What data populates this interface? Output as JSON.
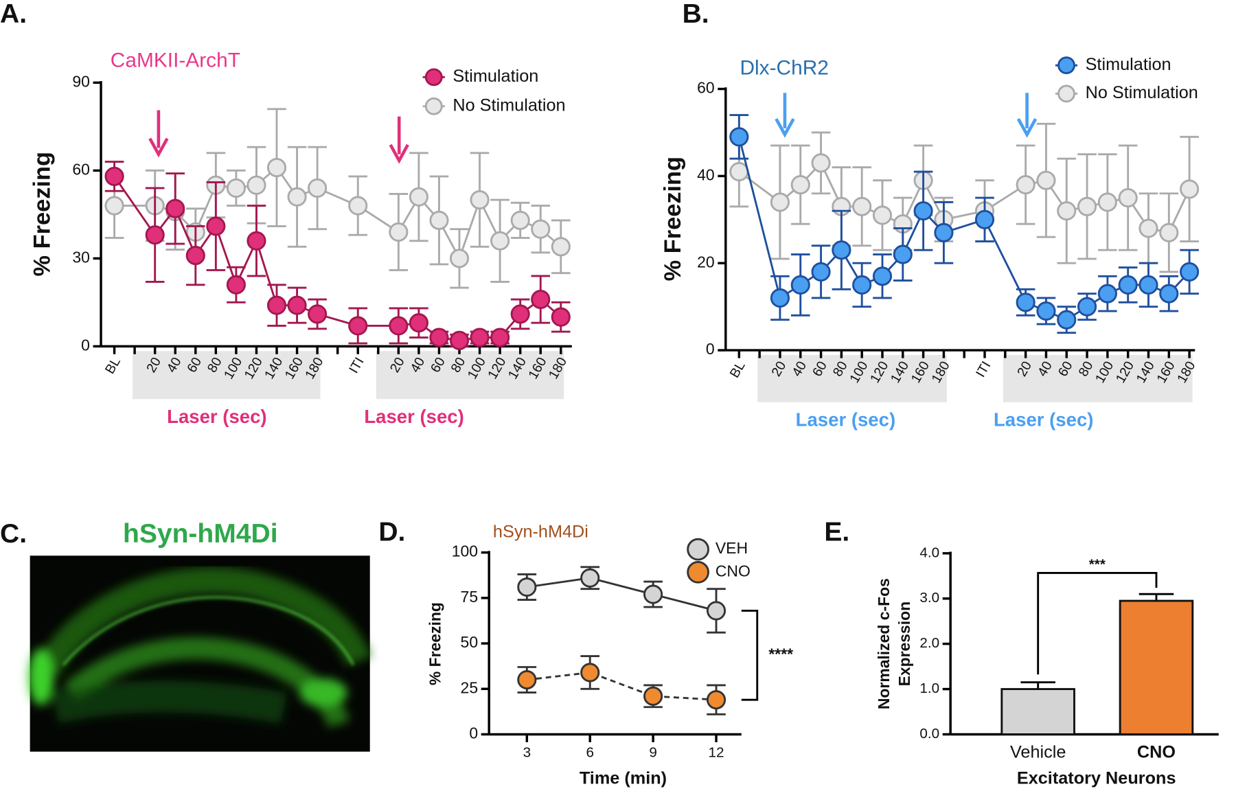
{
  "image_panel": {
    "label": "C.",
    "title": "hSyn-hM4Di"
  },
  "chart_data": [
    {
      "type": "line",
      "panel_label": "A.",
      "title": "CaMKII-ArchT",
      "y_label": "% Freezing",
      "x_annotations": [
        "Laser (sec)",
        "Laser (sec)"
      ],
      "categories": [
        "BL",
        "20",
        "40",
        "60",
        "80",
        "100",
        "120",
        "140",
        "160",
        "180",
        "ITI",
        "20",
        "40",
        "60",
        "80",
        "100",
        "120",
        "140",
        "160",
        "180"
      ],
      "ylim": [
        0,
        90
      ],
      "yticks": [
        0,
        30,
        60,
        90
      ],
      "series": [
        {
          "name": "Stimulation",
          "color": "#e0307a",
          "line_color": "#a3174f",
          "values": [
            58,
            38,
            47,
            31,
            41,
            21,
            36,
            14,
            14,
            11,
            7,
            7,
            8,
            3,
            2,
            3,
            3,
            11,
            16,
            10
          ],
          "errors": [
            5,
            16,
            12,
            10,
            15,
            6,
            12,
            7,
            6,
            5,
            6,
            6,
            5,
            2,
            2,
            2,
            2,
            5,
            8,
            5
          ]
        },
        {
          "name": "No Stimulation",
          "color": "#e8e8e8",
          "line_color": "#aaaaaa",
          "values": [
            48,
            48,
            46,
            39,
            55,
            54,
            55,
            61,
            51,
            54,
            48,
            39,
            51,
            43,
            30,
            50,
            36,
            43,
            40,
            34
          ],
          "errors": [
            11,
            12,
            13,
            8,
            11,
            6,
            13,
            20,
            17,
            14,
            10,
            13,
            15,
            15,
            10,
            16,
            14,
            6,
            8,
            9
          ]
        }
      ]
    },
    {
      "type": "line",
      "panel_label": "B.",
      "title": "Dlx-ChR2",
      "y_label": "% Freezing",
      "x_annotations": [
        "Laser (sec)",
        "Laser (sec)"
      ],
      "categories": [
        "BL",
        "20",
        "40",
        "60",
        "80",
        "100",
        "120",
        "140",
        "160",
        "180",
        "ITI",
        "20",
        "40",
        "60",
        "80",
        "100",
        "120",
        "140",
        "160",
        "180"
      ],
      "ylim": [
        0,
        60
      ],
      "yticks": [
        0,
        20,
        40,
        60
      ],
      "series": [
        {
          "name": "Stimulation",
          "color": "#4a9ff0",
          "line_color": "#1f4f9e",
          "values": [
            49,
            12,
            15,
            18,
            23,
            15,
            17,
            22,
            32,
            27,
            30,
            11,
            9,
            7,
            10,
            13,
            15,
            15,
            13,
            18
          ],
          "errors": [
            5,
            5,
            7,
            6,
            9,
            5,
            5,
            6,
            9,
            7,
            5,
            3,
            3,
            3,
            3,
            4,
            4,
            5,
            4,
            5
          ]
        },
        {
          "name": "No Stimulation",
          "color": "#e8e8e8",
          "line_color": "#aaaaaa",
          "values": [
            41,
            34,
            38,
            43,
            33,
            33,
            31,
            29,
            39,
            30,
            32,
            38,
            39,
            32,
            33,
            34,
            35,
            28,
            27,
            37
          ],
          "errors": [
            8,
            13,
            9,
            7,
            9,
            9,
            8,
            6,
            8,
            5,
            7,
            9,
            13,
            12,
            12,
            11,
            12,
            8,
            9,
            12
          ]
        }
      ]
    },
    {
      "type": "line",
      "panel_label": "D.",
      "title": "hSyn-hM4Di",
      "y_label": "% Freezing",
      "x_label": "Time (min)",
      "annotation": "****",
      "x": [
        3,
        6,
        9,
        12
      ],
      "xlim": [
        1.2,
        13.2
      ],
      "xticks": [
        3,
        6,
        9,
        12
      ],
      "ylim": [
        0,
        100
      ],
      "yticks": [
        0,
        25,
        50,
        75,
        100
      ],
      "series": [
        {
          "name": "VEH",
          "color": "#d4d4d4",
          "line_color": "#333333",
          "dashed": false,
          "values": [
            81,
            86,
            77,
            68
          ],
          "errors": [
            7,
            6,
            7,
            12
          ]
        },
        {
          "name": "CNO",
          "color": "#f08a30",
          "line_color": "#333333",
          "dashed": true,
          "values": [
            30,
            34,
            21,
            19
          ],
          "errors": [
            7,
            9,
            6,
            8
          ]
        }
      ]
    },
    {
      "type": "bar",
      "panel_label": "E.",
      "y_label": [
        "Normalized c-Fos",
        "Expression"
      ],
      "x_label": "Excitatory Neurons",
      "annotation": "***",
      "categories": [
        "Vehicle",
        "CNO"
      ],
      "values": [
        1.0,
        2.95
      ],
      "errors": [
        0.15,
        0.15
      ],
      "colors": [
        "#d4d4d4",
        "#ec7f30"
      ],
      "ylim": [
        0,
        4
      ],
      "yticks": [
        {
          "value": 0,
          "label": "0.0"
        },
        {
          "value": 1,
          "label": "1.0"
        },
        {
          "value": 2,
          "label": "2.0"
        },
        {
          "value": 3,
          "label": "3.0"
        },
        {
          "value": 4,
          "label": "4.0"
        }
      ]
    }
  ]
}
